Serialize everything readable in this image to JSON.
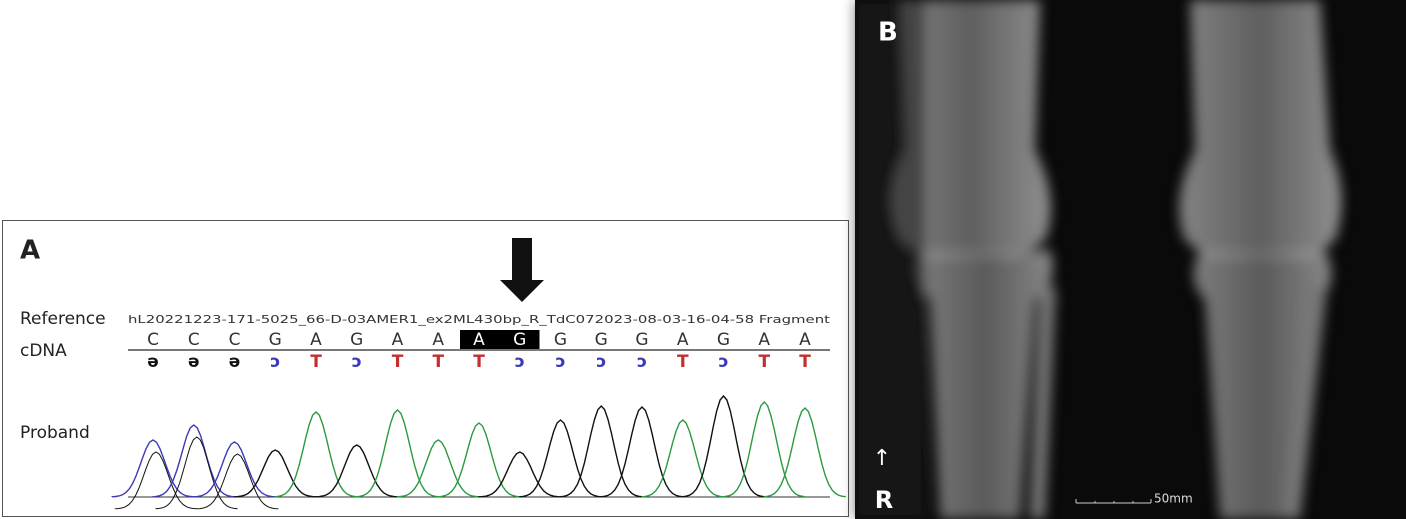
{
  "panel_a": {
    "label": "A",
    "reference_label": "Reference",
    "cdna_label": "cDNA",
    "proband_label": "Proband",
    "file_name": "hL20221223-171-5025_66-D-03AMER1_ex2ML430bp_R_TdC072023-08-03-16-04-58 Fragment",
    "reference_bases": [
      "C",
      "C",
      "C",
      "G",
      "A",
      "G",
      "A",
      "A",
      "A",
      "G",
      "G",
      "G",
      "G",
      "A",
      "G",
      "A",
      "A"
    ],
    "complement_bases": [
      "ə",
      "ə",
      "ə",
      "ɔ",
      "T",
      "ɔ",
      "T",
      "T",
      "T",
      "ɔ",
      "ɔ",
      "ɔ",
      "ɔ",
      "T",
      "ɔ",
      "T",
      "T"
    ],
    "highlighted": [
      8,
      9
    ]
  },
  "panel_b": {
    "label": "B",
    "orientation_arrow": "↑",
    "side_label": "R",
    "scale_bar_label": "50mm"
  }
}
